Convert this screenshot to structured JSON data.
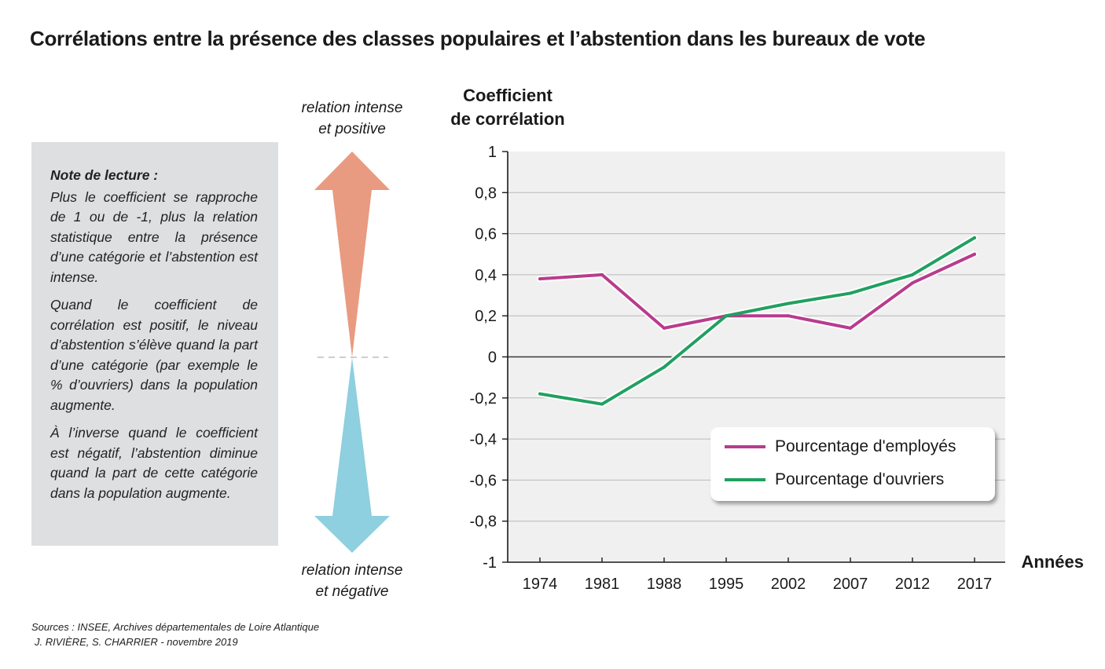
{
  "title": "Corrélations entre la présence des classes populaires et l’abstention dans les bureaux de vote",
  "note": {
    "title": "Note de lecture :",
    "paragraphs": [
      "Plus le coefficient se rapproche de 1 ou de -1, plus la relation statistique entre la présence d’une catégorie et l’abstention est intense.",
      "Quand le coefficient de corrélation est positif, le niveau d’abstention s’élève quand la part d’une catégorie (par exemple le % d’ouvriers) dans la population augmente.",
      "À l’inverse quand le coefficient est négatif, l’abstention diminue quand la part de cette catégorie dans la population augmente."
    ]
  },
  "arrows": {
    "top_label_line1": "relation intense",
    "top_label_line2": "et positive",
    "bottom_label_line1": "relation intense",
    "bottom_label_line2": "et négative",
    "up_color": "#e89b80",
    "down_color": "#8ecfe0"
  },
  "sources": {
    "line1": "Sources : INSEE, Archives départementales de Loire Atlantique",
    "line2": "J. RIVIÈRE, S. CHARRIER - novembre 2019"
  },
  "chart_data": {
    "type": "line",
    "title": "",
    "ylabel_line1": "Coefficient",
    "ylabel_line2": "de corrélation",
    "xlabel": "Années",
    "ylim": [
      -1,
      1
    ],
    "yticks": [
      1,
      0.8,
      0.6,
      0.4,
      0.2,
      0,
      -0.2,
      -0.4,
      -0.6,
      -0.8,
      -1
    ],
    "ytick_labels": [
      "1",
      "0,8",
      "0,6",
      "0,4",
      "0,2",
      "0",
      "-0,2",
      "-0,4",
      "-0,6",
      "-0,8",
      "-1"
    ],
    "x": [
      "1974",
      "1981",
      "1988",
      "1995",
      "2002",
      "2007",
      "2012",
      "2017"
    ],
    "grid": true,
    "legend_position": "bottom-right",
    "series": [
      {
        "name": "Pourcentage d'employés",
        "color": "#b83c8e",
        "values": [
          0.38,
          0.4,
          0.14,
          0.2,
          0.2,
          0.14,
          0.36,
          0.5
        ]
      },
      {
        "name": "Pourcentage d'ouvriers",
        "color": "#21a060",
        "values": [
          -0.18,
          -0.23,
          -0.05,
          0.2,
          0.26,
          0.31,
          0.4,
          0.58
        ]
      }
    ]
  }
}
